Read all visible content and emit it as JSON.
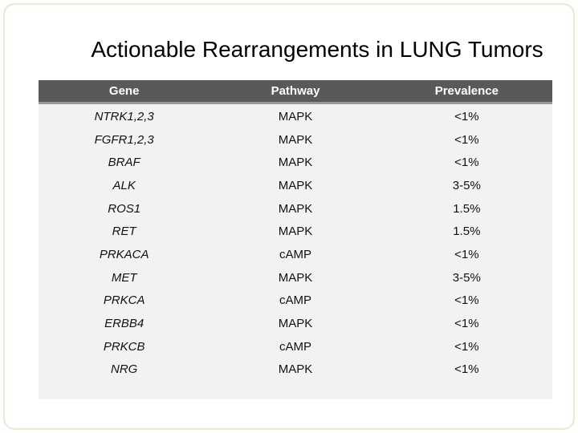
{
  "slide": {
    "title": "Actionable Rearrangements in LUNG Tumors"
  },
  "table": {
    "columns": [
      "Gene",
      "Pathway",
      "Prevalence"
    ],
    "rows": [
      {
        "gene": "NTRK1,2,3",
        "pathway": "MAPK",
        "prevalence": "<1%"
      },
      {
        "gene": "FGFR1,2,3",
        "pathway": "MAPK",
        "prevalence": "<1%"
      },
      {
        "gene": "BRAF",
        "pathway": "MAPK",
        "prevalence": "<1%"
      },
      {
        "gene": "ALK",
        "pathway": "MAPK",
        "prevalence": "3-5%"
      },
      {
        "gene": "ROS1",
        "pathway": "MAPK",
        "prevalence": "1.5%"
      },
      {
        "gene": "RET",
        "pathway": "MAPK",
        "prevalence": "1.5%"
      },
      {
        "gene": "PRKACA",
        "pathway": "cAMP",
        "prevalence": "<1%"
      },
      {
        "gene": "MET",
        "pathway": "MAPK",
        "prevalence": "3-5%"
      },
      {
        "gene": "PRKCA",
        "pathway": "cAMP",
        "prevalence": "<1%"
      },
      {
        "gene": "ERBB4",
        "pathway": "MAPK",
        "prevalence": "<1%"
      },
      {
        "gene": "PRKCB",
        "pathway": "cAMP",
        "prevalence": "<1%"
      },
      {
        "gene": "NRG",
        "pathway": "MAPK",
        "prevalence": "<1%"
      }
    ]
  },
  "colors": {
    "header_bg": "#58595b",
    "header_separator": "#979b9e",
    "body_bg": "#f2f2f3",
    "frame_border": "#eee8d2",
    "text": "#111111",
    "header_text": "#ffffff"
  }
}
